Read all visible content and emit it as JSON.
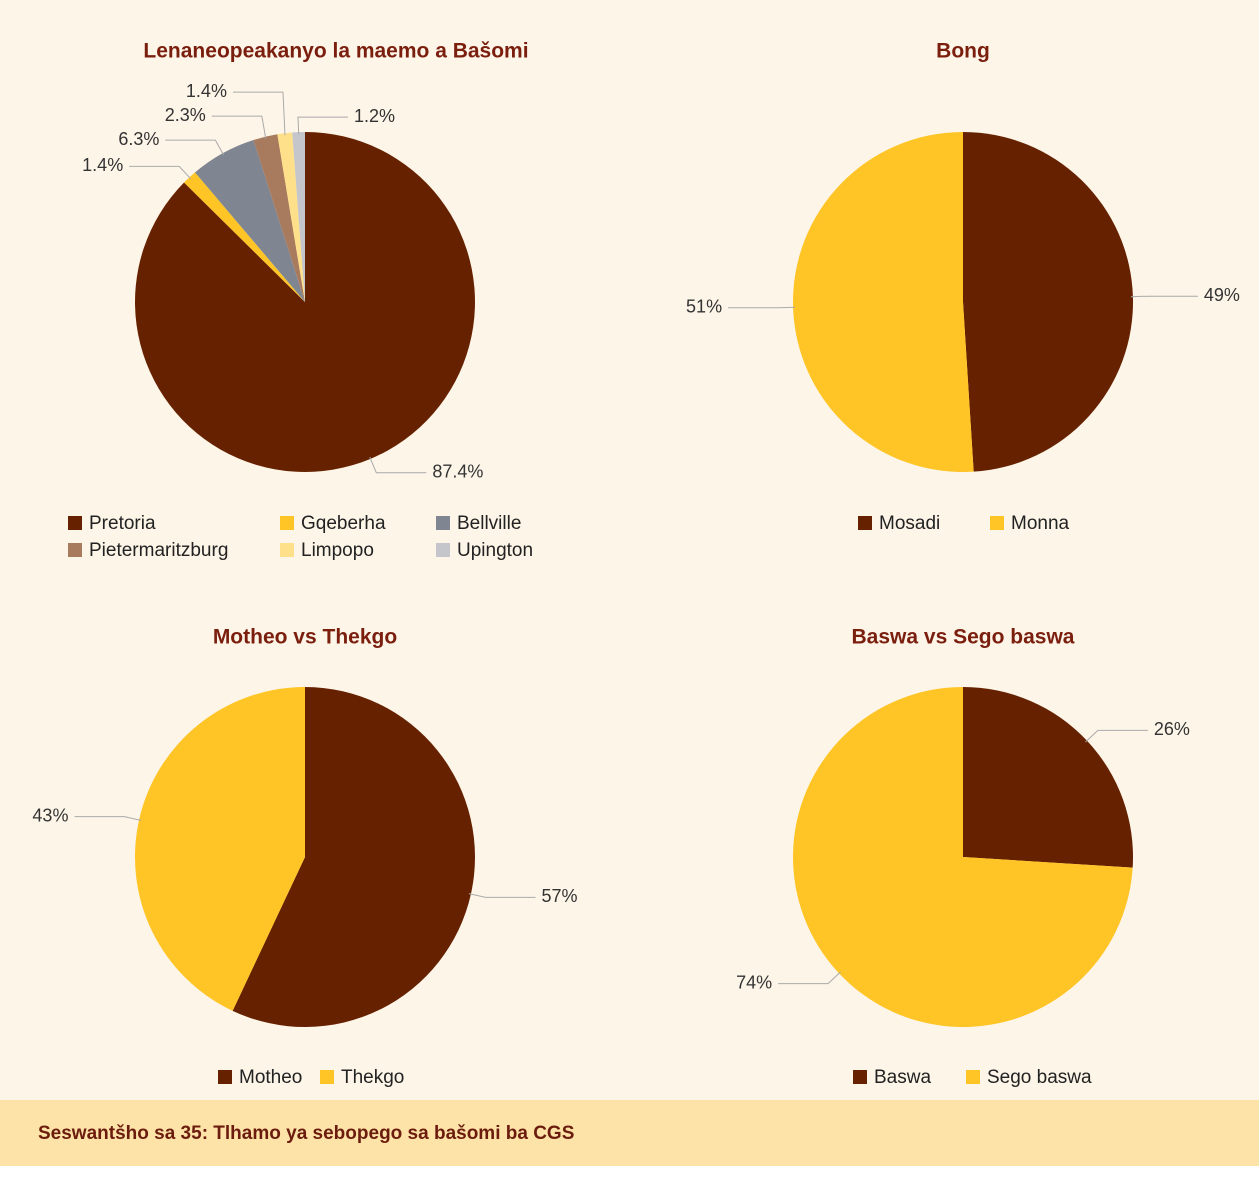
{
  "chart_data": [
    {
      "type": "pie",
      "title": "Lenaneopeakanyo la maemo a Bašomi",
      "categories": [
        "Pretoria",
        "Gqeberha",
        "Bellville",
        "Pietermaritzburg",
        "Limpopo",
        "Upington"
      ],
      "values": [
        87.4,
        1.4,
        6.3,
        2.3,
        1.4,
        1.2
      ],
      "value_labels": [
        "87.4%",
        "1.4%",
        "6.3%",
        "2.3%",
        "1.4%",
        "1.2%"
      ],
      "colors": [
        "#662200",
        "#ffc425",
        "#7f8591",
        "#a87a5e",
        "#ffe08a",
        "#c4c6cc"
      ]
    },
    {
      "type": "pie",
      "title": "Bong",
      "categories": [
        "Mosadi",
        "Monna"
      ],
      "values": [
        49,
        51
      ],
      "value_labels": [
        "49%",
        "51%"
      ],
      "colors": [
        "#662200",
        "#ffc425"
      ]
    },
    {
      "type": "pie",
      "title": "Motheo vs Thekgo",
      "categories": [
        "Motheo",
        "Thekgo"
      ],
      "values": [
        57,
        43
      ],
      "value_labels": [
        "57%",
        "43%"
      ],
      "colors": [
        "#662200",
        "#ffc425"
      ]
    },
    {
      "type": "pie",
      "title": "Baswa vs Sego baswa",
      "categories": [
        "Baswa",
        "Sego baswa"
      ],
      "values": [
        26,
        74
      ],
      "value_labels": [
        "26%",
        "74%"
      ],
      "colors": [
        "#662200",
        "#ffc425"
      ]
    }
  ],
  "caption": "Seswantšho sa 35: Tlhamo ya sebopego sa bašomi ba CGS"
}
